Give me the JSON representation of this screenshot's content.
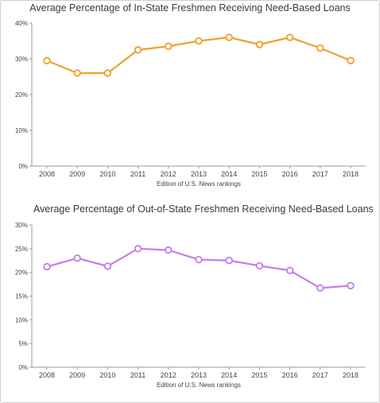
{
  "chart_data": [
    {
      "type": "line",
      "title": "Average Percentage of In-State Freshmen Receiving Need-Based Loans",
      "xlabel": "Edition of U.S. News rankings",
      "ylabel": "",
      "categories": [
        "2008",
        "2009",
        "2010",
        "2011",
        "2012",
        "2013",
        "2014",
        "2015",
        "2016",
        "2017",
        "2018"
      ],
      "series": [
        {
          "values": [
            29.5,
            26,
            26,
            32.5,
            33.5,
            35,
            36,
            34,
            36,
            33,
            29.5
          ],
          "color": "#f0a02a"
        }
      ],
      "ylim": [
        0,
        40
      ],
      "yticks": [
        0,
        10,
        20,
        30,
        40
      ],
      "ytick_labels": [
        "0%",
        "10%",
        "20%",
        "30%",
        "40%"
      ],
      "grid": false,
      "legend": "none"
    },
    {
      "type": "line",
      "title": "Average Percentage of Out-of-State Freshmen Receiving Need-Based Loans",
      "xlabel": "Edition of U.S. News rankings",
      "ylabel": "",
      "categories": [
        "2008",
        "2009",
        "2010",
        "2011",
        "2012",
        "2013",
        "2014",
        "2015",
        "2016",
        "2017",
        "2018"
      ],
      "series": [
        {
          "values": [
            21.2,
            23,
            21.3,
            25,
            24.7,
            22.7,
            22.5,
            21.4,
            20.4,
            16.7,
            17.2
          ],
          "color": "#c77ce6"
        }
      ],
      "ylim": [
        0,
        30
      ],
      "yticks": [
        0,
        5,
        10,
        15,
        20,
        25,
        30
      ],
      "ytick_labels": [
        "0%",
        "5%",
        "10%",
        "15%",
        "20%",
        "25%",
        "30%"
      ],
      "grid": false,
      "legend": "none"
    }
  ]
}
